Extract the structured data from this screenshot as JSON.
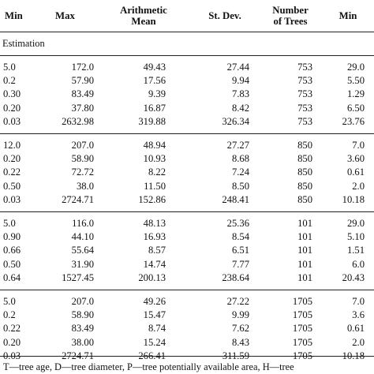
{
  "headers": {
    "col1": "Min",
    "col2": "Max",
    "col3_line1": "Arithmetic",
    "col3_line2": "Mean",
    "col4": "St. Dev.",
    "col5_line1": "Number",
    "col5_line2": "of Trees",
    "col6": "Min"
  },
  "section_label": "Estimation",
  "groups": [
    {
      "rows": [
        [
          "5.0",
          "172.0",
          "49.43",
          "27.44",
          "753",
          "29.0"
        ],
        [
          "0.2",
          "57.90",
          "17.56",
          "9.94",
          "753",
          "5.50"
        ],
        [
          "0.30",
          "83.49",
          "9.39",
          "7.83",
          "753",
          "1.29"
        ],
        [
          "0.20",
          "37.80",
          "16.87",
          "8.42",
          "753",
          "6.50"
        ],
        [
          "0.03",
          "2632.98",
          "319.88",
          "326.34",
          "753",
          "23.76"
        ]
      ]
    },
    {
      "rows": [
        [
          "12.0",
          "207.0",
          "48.94",
          "27.27",
          "850",
          "7.0"
        ],
        [
          "0.20",
          "58.90",
          "10.93",
          "8.68",
          "850",
          "3.60"
        ],
        [
          "0.22",
          "72.72",
          "8.22",
          "7.24",
          "850",
          "0.61"
        ],
        [
          "0.50",
          "38.0",
          "11.50",
          "8.50",
          "850",
          "2.0"
        ],
        [
          "0.03",
          "2724.71",
          "152.86",
          "248.41",
          "850",
          "10.18"
        ]
      ]
    },
    {
      "rows": [
        [
          "5.0",
          "116.0",
          "48.13",
          "25.36",
          "101",
          "29.0"
        ],
        [
          "0.90",
          "44.10",
          "16.93",
          "8.54",
          "101",
          "5.10"
        ],
        [
          "0.66",
          "55.64",
          "8.57",
          "6.51",
          "101",
          "1.51"
        ],
        [
          "0.50",
          "31.90",
          "14.74",
          "7.77",
          "101",
          "6.0"
        ],
        [
          "0.64",
          "1527.45",
          "200.13",
          "238.64",
          "101",
          "20.43"
        ]
      ]
    },
    {
      "rows": [
        [
          "5.0",
          "207.0",
          "49.26",
          "27.22",
          "1705",
          "7.0"
        ],
        [
          "0.2",
          "58.90",
          "15.47",
          "9.99",
          "1705",
          "3.6"
        ],
        [
          "0.22",
          "83.49",
          "8.74",
          "7.62",
          "1705",
          "0.61"
        ],
        [
          "0.20",
          "38.00",
          "15.24",
          "8.43",
          "1705",
          "2.0"
        ],
        [
          "0.03",
          "2724.71",
          "266.41",
          "311.59",
          "1705",
          "10.18"
        ]
      ]
    }
  ],
  "footnote": "T—tree age, D—tree diameter, P—tree potentially available area, H—tree"
}
